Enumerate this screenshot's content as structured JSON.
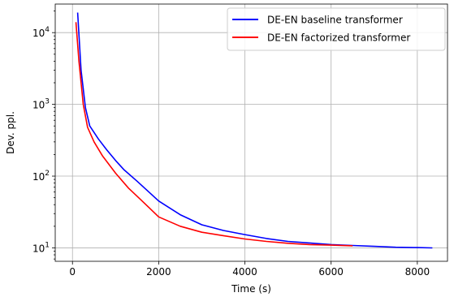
{
  "chart_data": {
    "type": "line",
    "xlabel": "Time (s)",
    "ylabel": "Dev. ppl.",
    "xlim": [
      -400,
      8700
    ],
    "ylim": [
      6.5,
      25000
    ],
    "yscale": "log",
    "grid": true,
    "legend_position": "top-right",
    "x_ticks": [
      0,
      2000,
      4000,
      6000,
      8000
    ],
    "x_tick_labels": [
      "0",
      "2000",
      "4000",
      "6000",
      "8000"
    ],
    "y_ticks": [
      10,
      100,
      1000,
      10000
    ],
    "y_tick_labels": [
      {
        "base": "10",
        "exp": "1"
      },
      {
        "base": "10",
        "exp": "2"
      },
      {
        "base": "10",
        "exp": "3"
      },
      {
        "base": "10",
        "exp": "4"
      }
    ],
    "series": [
      {
        "name": "DE-EN baseline transformer",
        "color": "#0000ff",
        "x": [
          120,
          200,
          300,
          400,
          600,
          800,
          1000,
          1200,
          1500,
          2000,
          2500,
          3000,
          3500,
          4000,
          4500,
          5000,
          5500,
          6000,
          6500,
          7000,
          7500,
          8000,
          8350
        ],
        "y": [
          19000,
          3000,
          900,
          500,
          330,
          230,
          165,
          122,
          85,
          45,
          29,
          21,
          17.5,
          15.3,
          13.5,
          12.3,
          11.7,
          11.1,
          10.8,
          10.5,
          10.2,
          10.1,
          10.0
        ]
      },
      {
        "name": "DE-EN factorized transformer",
        "color": "#ff0000",
        "x": [
          80,
          150,
          250,
          350,
          500,
          700,
          1000,
          1300,
          1600,
          2000,
          2500,
          3000,
          3500,
          4000,
          4500,
          5000,
          5500,
          6000,
          6500
        ],
        "y": [
          14000,
          4000,
          1000,
          480,
          300,
          190,
          110,
          68,
          46,
          27,
          20,
          16.5,
          14.8,
          13.3,
          12.3,
          11.6,
          11.1,
          10.9,
          10.7
        ]
      }
    ]
  }
}
